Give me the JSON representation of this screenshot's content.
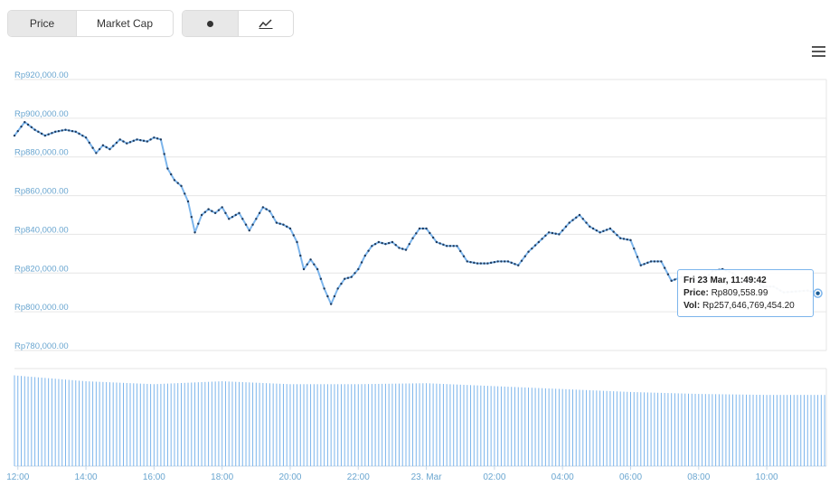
{
  "toolbar": {
    "metric_options": [
      {
        "label": "Price",
        "active": true
      },
      {
        "label": "Market Cap",
        "active": false
      }
    ],
    "chart_style_options": [
      {
        "icon": "dot-icon",
        "active": true
      },
      {
        "icon": "line-chart-icon",
        "active": false
      }
    ],
    "menu_icon": "hamburger-menu-icon"
  },
  "tooltip": {
    "date": "Fri 23 Mar, 11:49:42",
    "price_label": "Price:",
    "price_value": "Rp809,558.99",
    "vol_label": "Vol:",
    "vol_value": "Rp257,646,769,454.20"
  },
  "chart_data": {
    "type": "line",
    "title": "",
    "xlabel": "",
    "ylabel": "",
    "ylim": [
      780000,
      920000
    ],
    "y_ticks": [
      "Rp920,000.00",
      "Rp900,000.00",
      "Rp880,000.00",
      "Rp860,000.00",
      "Rp840,000.00",
      "Rp820,000.00",
      "Rp800,000.00",
      "Rp780,000.00"
    ],
    "y_tick_values": [
      920000,
      900000,
      880000,
      860000,
      840000,
      820000,
      800000,
      780000
    ],
    "x_ticks": [
      "12:00",
      "14:00",
      "16:00",
      "18:00",
      "20:00",
      "22:00",
      "23. Mar",
      "02:00",
      "04:00",
      "06:00",
      "08:00",
      "10:00"
    ],
    "x_tick_hours": [
      0,
      2,
      4,
      6,
      8,
      10,
      12,
      14,
      16,
      18,
      20,
      22
    ],
    "x_range_hours": [
      -0.1,
      23.75
    ],
    "grid": true,
    "colors": {
      "line": "#7cb5ec",
      "marker": "#1f3a5c",
      "volume": "#7cb5ec",
      "tick_text": "#6aa6d0",
      "grid": "#e6e6e6"
    },
    "series": [
      {
        "type": "line",
        "x_hours": [
          -0.1,
          0.2,
          0.5,
          0.8,
          1.1,
          1.4,
          1.7,
          2.0,
          2.3,
          2.5,
          2.7,
          3.0,
          3.2,
          3.5,
          3.8,
          4.0,
          4.2,
          4.4,
          4.6,
          4.8,
          5.0,
          5.2,
          5.4,
          5.6,
          5.8,
          6.0,
          6.2,
          6.5,
          6.8,
          7.0,
          7.2,
          7.4,
          7.6,
          7.8,
          8.0,
          8.2,
          8.4,
          8.6,
          8.8,
          9.0,
          9.2,
          9.4,
          9.6,
          9.8,
          10.0,
          10.2,
          10.4,
          10.6,
          10.8,
          11.0,
          11.2,
          11.4,
          11.6,
          11.8,
          12.0,
          12.3,
          12.6,
          12.9,
          13.2,
          13.5,
          13.8,
          14.1,
          14.4,
          14.7,
          15.0,
          15.3,
          15.6,
          15.9,
          16.2,
          16.5,
          16.8,
          17.1,
          17.4,
          17.7,
          18.0,
          18.3,
          18.6,
          18.9,
          19.2,
          19.5,
          19.8,
          20.1,
          20.4,
          20.7,
          21.0,
          21.3,
          21.6,
          21.9,
          22.2,
          22.5,
          23.2,
          23.5
        ],
        "values": [
          891000,
          898000,
          894000,
          891000,
          893000,
          894000,
          893000,
          890000,
          882000,
          886000,
          884000,
          889000,
          887000,
          889000,
          888000,
          890000,
          889000,
          874000,
          868000,
          865000,
          857000,
          841000,
          850000,
          853000,
          851000,
          854000,
          848000,
          851000,
          842000,
          848000,
          854000,
          852000,
          846000,
          845000,
          843000,
          836000,
          822000,
          827000,
          822000,
          812000,
          804000,
          812000,
          817000,
          818000,
          822000,
          829000,
          834000,
          836000,
          835000,
          836000,
          833000,
          832000,
          838000,
          843000,
          843000,
          836000,
          834000,
          834000,
          826000,
          825000,
          825000,
          826000,
          826000,
          824000,
          831000,
          836000,
          841000,
          840000,
          846000,
          850000,
          844000,
          841000,
          843000,
          838000,
          837000,
          824000,
          826000,
          826000,
          816000,
          818000,
          817000,
          815000,
          821000,
          822000,
          820000,
          816000,
          816000,
          813000,
          813000,
          810000,
          811000,
          809559
        ]
      },
      {
        "type": "volume",
        "x_hours": [
          -0.1,
          2,
          4,
          6,
          8,
          10,
          12,
          14,
          16,
          18,
          20,
          22,
          23.7
        ],
        "values": [
          93,
          87,
          84,
          87,
          84,
          84,
          85,
          82,
          79,
          76,
          74,
          73,
          73
        ]
      }
    ]
  }
}
